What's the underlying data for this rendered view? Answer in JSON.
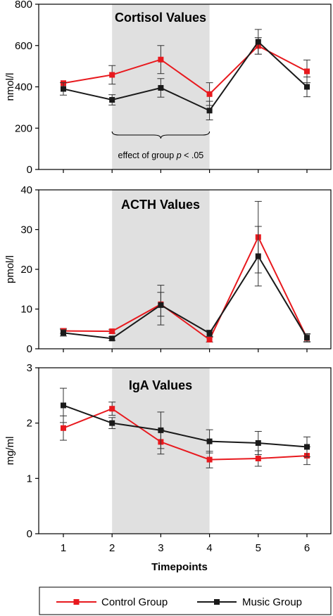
{
  "chart_data": [
    {
      "type": "line",
      "title": "Cortisol Values",
      "ylabel": "nmol/l",
      "ylim": [
        0,
        800
      ],
      "yticks": [
        0,
        200,
        400,
        600,
        800
      ],
      "x": [
        1,
        2,
        3,
        4,
        5,
        6
      ],
      "shaded_region": [
        2,
        4
      ],
      "annotation": {
        "prefix": "effect of group ",
        "italic": "p",
        "suffix": " < .05"
      },
      "series": [
        {
          "name": "Control Group",
          "color": "#e8191e",
          "values": [
            418,
            458,
            532,
            365,
            598,
            475
          ],
          "error": [
            null,
            45,
            68,
            55,
            40,
            55
          ]
        },
        {
          "name": "Music Group",
          "color": "#1a1a1a",
          "values": [
            390,
            337,
            395,
            285,
            618,
            400
          ],
          "error": [
            30,
            25,
            45,
            45,
            60,
            48
          ]
        }
      ]
    },
    {
      "type": "line",
      "title": "ACTH Values",
      "ylabel": "pmol/l",
      "ylim": [
        0,
        40
      ],
      "yticks": [
        0,
        10,
        20,
        30,
        40
      ],
      "x": [
        1,
        2,
        3,
        4,
        5,
        6
      ],
      "shaded_region": [
        2,
        4
      ],
      "series": [
        {
          "name": "Control Group",
          "color": "#e8191e",
          "values": [
            4.5,
            4.4,
            11.2,
            2.3,
            28.1,
            2.7
          ],
          "error": [
            0.6,
            0.5,
            3,
            0.6,
            9,
            1
          ]
        },
        {
          "name": "Music Group",
          "color": "#1a1a1a",
          "values": [
            4.0,
            2.6,
            11.0,
            3.9,
            23.3,
            2.8
          ],
          "error": [
            0.8,
            0.5,
            5,
            0.8,
            7.5,
            1
          ]
        }
      ]
    },
    {
      "type": "line",
      "title": "IgA Values",
      "ylabel": "mg/ml",
      "ylim": [
        0,
        3
      ],
      "yticks": [
        0,
        1,
        2,
        3
      ],
      "xlabel": "Timepoints",
      "xticks": [
        1,
        2,
        3,
        4,
        5,
        6
      ],
      "x": [
        1,
        2,
        3,
        4,
        5,
        6
      ],
      "shaded_region": [
        2,
        4
      ],
      "series": [
        {
          "name": "Control Group",
          "color": "#e8191e",
          "values": [
            1.91,
            2.26,
            1.66,
            1.34,
            1.36,
            1.41
          ],
          "error": [
            0.22,
            0.12,
            0.22,
            0.15,
            0.14,
            0.16
          ]
        },
        {
          "name": "Music Group",
          "color": "#1a1a1a",
          "values": [
            2.32,
            2.0,
            1.87,
            1.67,
            1.64,
            1.57
          ],
          "error": [
            0.31,
            0.1,
            0.33,
            0.21,
            0.21,
            0.18
          ]
        }
      ]
    }
  ],
  "legend": {
    "position": "bottom",
    "items": [
      {
        "label": "Control Group",
        "color": "#e8191e"
      },
      {
        "label": "Music Group",
        "color": "#1a1a1a"
      }
    ]
  }
}
